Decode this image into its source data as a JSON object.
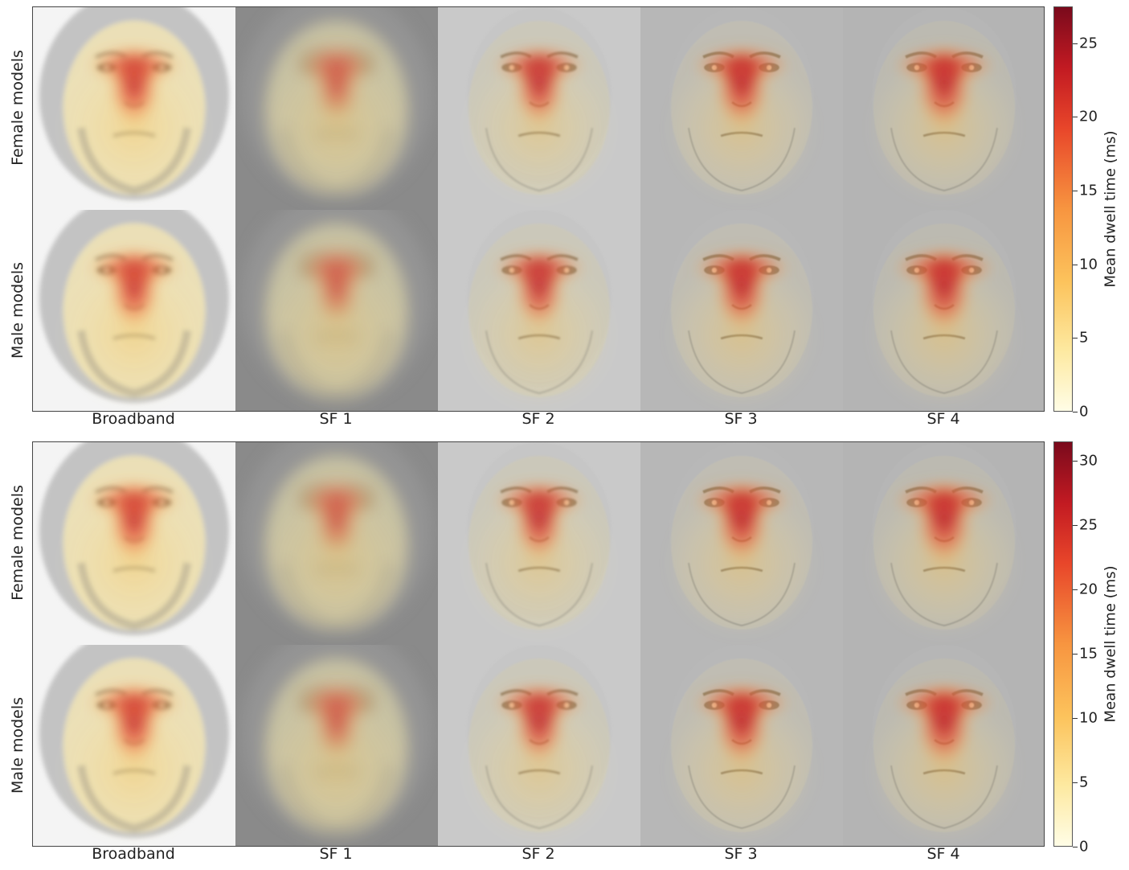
{
  "panels": [
    {
      "row_labels": [
        "Female models",
        "Male models"
      ],
      "col_labels": [
        "Broadband",
        "SF 1",
        "SF 2",
        "SF 3",
        "SF 4"
      ],
      "colorbar": {
        "title": "Mean dwell time (ms)",
        "min": 0,
        "max": 27.5,
        "ticks": [
          "0",
          "5",
          "10",
          "15",
          "20",
          "25"
        ]
      }
    },
    {
      "row_labels": [
        "Female models",
        "Male models"
      ],
      "col_labels": [
        "Broadband",
        "SF 1",
        "SF 2",
        "SF 3",
        "SF 4"
      ],
      "colorbar": {
        "title": "Mean dwell time (ms)",
        "min": 0,
        "max": 31.5,
        "ticks": [
          "0",
          "5",
          "10",
          "15",
          "20",
          "25",
          "30"
        ]
      }
    }
  ],
  "colors": {
    "colormap": [
      "#fffde6",
      "#fde9a0",
      "#fcc35c",
      "#f79540",
      "#e8462a",
      "#c21a22",
      "#7a0a1c"
    ],
    "broadband_bg": "#f4f4f4",
    "sf1_bg": "#8a8a8a",
    "sf2_bg": "#c9c9c9",
    "sf3_bg": "#b7b7b7",
    "sf4_bg": "#b4b4b4"
  },
  "images": "Eye-tracking heatmaps overlaid on average face images filtered at different spatial frequencies"
}
